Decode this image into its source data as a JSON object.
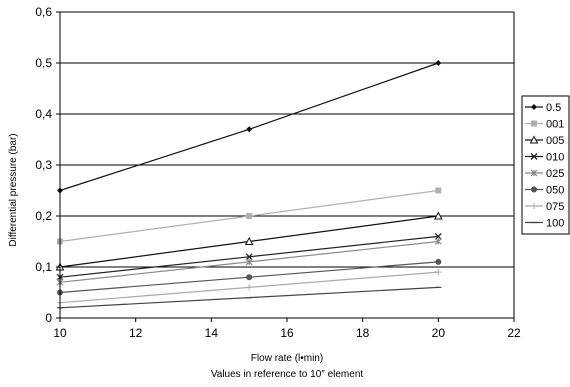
{
  "chart_data": {
    "type": "line",
    "xlabel": "Flow rate (l•min)",
    "subtitle": "Values in reference to 10″ element",
    "ylabel": "Differential pressure (bar)",
    "xlim": [
      10,
      22
    ],
    "ylim": [
      0,
      0.6
    ],
    "x_ticks": [
      10,
      12,
      14,
      16,
      18,
      20,
      22
    ],
    "y_ticks": [
      0,
      0.1,
      0.2,
      0.3,
      0.4,
      0.5,
      0.6
    ],
    "x_tick_labels": [
      "10",
      "12",
      "14",
      "16",
      "18",
      "20",
      "22"
    ],
    "y_tick_labels": [
      "0",
      "0,1",
      "0,2",
      "0,3",
      "0,4",
      "0,5",
      "0,6"
    ],
    "grid": "horizontal",
    "legend_position": "right",
    "series": [
      {
        "name": "0.5",
        "x": [
          10,
          15,
          20
        ],
        "y": [
          0.25,
          0.37,
          0.5
        ],
        "color": "#111111",
        "marker": "diamond"
      },
      {
        "name": "001",
        "x": [
          10,
          15,
          20
        ],
        "y": [
          0.15,
          0.2,
          0.25
        ],
        "color": "#b0b0b0",
        "marker": "square"
      },
      {
        "name": "005",
        "x": [
          10,
          15,
          20
        ],
        "y": [
          0.1,
          0.15,
          0.2
        ],
        "color": "#111111",
        "marker": "triangle"
      },
      {
        "name": "010",
        "x": [
          10,
          15,
          20
        ],
        "y": [
          0.08,
          0.12,
          0.16
        ],
        "color": "#222222",
        "marker": "x"
      },
      {
        "name": "025",
        "x": [
          10,
          15,
          20
        ],
        "y": [
          0.07,
          0.11,
          0.15
        ],
        "color": "#888888",
        "marker": "asterisk"
      },
      {
        "name": "050",
        "x": [
          10,
          15,
          20
        ],
        "y": [
          0.05,
          0.08,
          0.11
        ],
        "color": "#555555",
        "marker": "circle"
      },
      {
        "name": "075",
        "x": [
          10,
          15,
          20
        ],
        "y": [
          0.03,
          0.06,
          0.09
        ],
        "color": "#aaaaaa",
        "marker": "plus"
      },
      {
        "name": "100",
        "x": [
          10,
          15,
          20
        ],
        "y": [
          0.02,
          0.04,
          0.06
        ],
        "color": "#444444",
        "marker": "dash"
      }
    ]
  }
}
